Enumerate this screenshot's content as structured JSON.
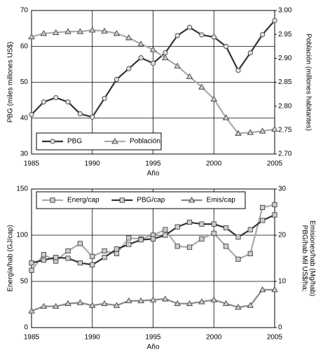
{
  "chart_data": [
    {
      "type": "line",
      "x_label": "Año",
      "y_label": "PBG (miles millones US$)",
      "y2_label": [
        "Población (millones habitantes)"
      ],
      "x": [
        1985,
        1986,
        1987,
        1988,
        1989,
        1990,
        1991,
        1992,
        1993,
        1994,
        1995,
        1996,
        1997,
        1998,
        1999,
        2000,
        2001,
        2002,
        2003,
        2004,
        2005
      ],
      "xlim": [
        1985,
        2005
      ],
      "xticks": [
        1985,
        1990,
        1995,
        2000,
        2005
      ],
      "ylim": [
        30,
        70
      ],
      "yticks": [
        30,
        40,
        50,
        60,
        70
      ],
      "y2lim": [
        2.7,
        3.0
      ],
      "y2ticks": [
        {
          "value": 2.7,
          "label": "2.70"
        },
        2.75,
        {
          "value": 2.8,
          "label": "2.80"
        },
        2.85,
        {
          "value": 2.9,
          "label": "2.90"
        },
        2.95,
        {
          "value": 3.0,
          "label": "3.00"
        }
      ],
      "grid": true,
      "legend": "bottom-left",
      "series": [
        {
          "name": "PBG",
          "color": "#333333",
          "marker": "circle",
          "values": [
            41,
            44.5,
            45.7,
            44.5,
            41.2,
            40.3,
            45.5,
            50.8,
            53.8,
            56.8,
            55.3,
            58.2,
            63,
            65.3,
            63.2,
            62.6,
            60,
            53.3,
            58.2,
            63.3,
            67.2
          ]
        },
        {
          "name": "Población",
          "color": "#aaaaaa",
          "marker": "triangle",
          "axis": "y2",
          "values": [
            2.945,
            2.952,
            2.954,
            2.956,
            2.956,
            2.959,
            2.957,
            2.952,
            2.943,
            2.93,
            2.918,
            2.901,
            2.884,
            2.862,
            2.84,
            2.815,
            2.776,
            2.743,
            2.745,
            2.748,
            2.752
          ]
        }
      ]
    },
    {
      "type": "line",
      "x_label": "Año",
      "y_label": "Energía/hab (GJ/cap)",
      "y2_label": [
        "PBG/hab Mil US$/ha;",
        "Emisiones/hab (Mg/hab)"
      ],
      "x": [
        1985,
        1986,
        1987,
        1988,
        1989,
        1990,
        1991,
        1992,
        1993,
        1994,
        1995,
        1996,
        1997,
        1998,
        1999,
        2000,
        2001,
        2002,
        2003,
        2004,
        2005
      ],
      "xlim": [
        1985,
        2005
      ],
      "xticks": [
        1985,
        1990,
        1995,
        2000,
        2005
      ],
      "ylim": [
        0,
        150
      ],
      "yticks": [
        0,
        50,
        100,
        150
      ],
      "y2lim": [
        0,
        30
      ],
      "y2ticks": [
        0,
        10,
        20,
        30
      ],
      "grid": true,
      "legend": "top",
      "series": [
        {
          "name": "Energ/cap",
          "color": "#aaaaaa",
          "marker": "square",
          "values": [
            62,
            79,
            72,
            83,
            91,
            77,
            83,
            80,
            97,
            96,
            100,
            106,
            88,
            87,
            96,
            102,
            88,
            74,
            80,
            130,
            133
          ]
        },
        {
          "name": "PBG/cap",
          "color": "#333333",
          "marker": "square",
          "axis": "y2",
          "values": [
            14,
            14.6,
            15.2,
            15,
            14,
            13.6,
            15.2,
            17,
            18,
            19,
            19.2,
            20,
            21.8,
            22.8,
            22.4,
            22.4,
            21.6,
            19.6,
            21.2,
            23.2,
            24.4
          ]
        },
        {
          "name": "Emis/cap",
          "color": "#888888",
          "marker": "triangle",
          "axis": "y2",
          "values": [
            3.6,
            4.6,
            4.6,
            5.2,
            5.4,
            4.8,
            5.2,
            4.8,
            5.8,
            5.8,
            6,
            6.2,
            5.2,
            5.2,
            5.6,
            6,
            5.2,
            4.4,
            4.8,
            8.2,
            8.2
          ]
        }
      ]
    }
  ]
}
